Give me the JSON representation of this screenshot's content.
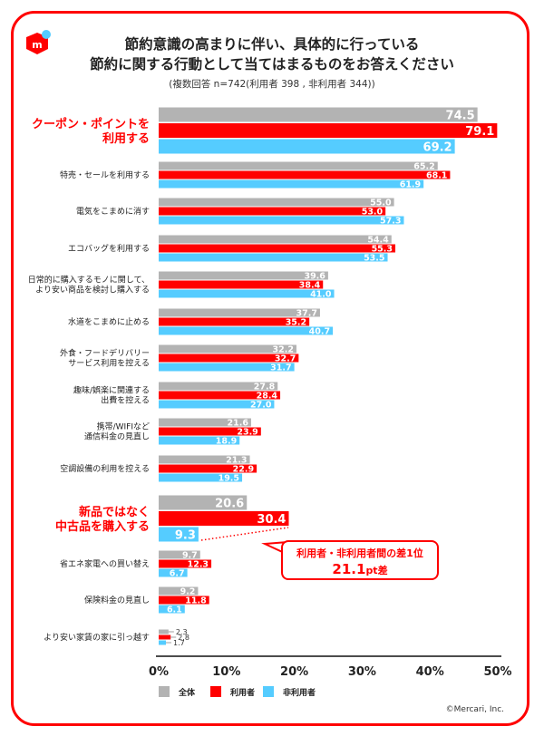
{
  "title_lines": [
    "節約意識の高まりに伴い、具体的に行っている",
    "節約に関する行動として当てはまるものをお答えください"
  ],
  "subtitle": "(複数回答 n=742(利用者 398 , 非利用者 344))",
  "callout": {
    "line1": "利用者・非利用者間の差1位",
    "value": "21.1",
    "unit": "pt差"
  },
  "copyright": "©Mercari, Inc.",
  "colors": {
    "all": "#b3b3b3",
    "user": "#ff0000",
    "nonuser": "#55ccff",
    "accent": "#ff0000"
  },
  "chart_data": {
    "type": "bar",
    "orientation": "horizontal",
    "categories": [
      [
        "クーポン・ポイントを",
        "利用する"
      ],
      [
        "特売・セールを利用する"
      ],
      [
        "電気をこまめに消す"
      ],
      [
        "エコバッグを利用する"
      ],
      [
        "日常的に購入するモノに関して、",
        "より安い商品を検討し購入する"
      ],
      [
        "水道をこまめに止める"
      ],
      [
        "外食・フードデリバリー",
        "サービス利用を控える"
      ],
      [
        "趣味/娯楽に関連する",
        "出費を控える"
      ],
      [
        "携帯/WIFIなど",
        "通信料金の見直し"
      ],
      [
        "空調設備の利用を控える"
      ],
      [
        "新品ではなく",
        "中古品を購入する"
      ],
      [
        "省エネ家電への買い替え"
      ],
      [
        "保険料金の見直し"
      ],
      [
        "より安い家賃の家に引っ越す"
      ]
    ],
    "highlighted": [
      0,
      10
    ],
    "series": [
      {
        "name": "全体",
        "values": [
          74.5,
          65.2,
          55.0,
          54.4,
          39.6,
          37.7,
          32.2,
          27.8,
          21.6,
          21.3,
          20.6,
          9.7,
          9.2,
          2.3
        ]
      },
      {
        "name": "利用者",
        "values": [
          79.1,
          68.1,
          53.0,
          55.3,
          38.4,
          35.2,
          32.7,
          28.4,
          23.9,
          22.9,
          30.4,
          12.3,
          11.8,
          2.8
        ]
      },
      {
        "name": "非利用者",
        "values": [
          69.2,
          61.9,
          57.3,
          53.5,
          41.0,
          40.7,
          31.7,
          27.0,
          18.9,
          19.5,
          9.3,
          6.7,
          6.1,
          1.7
        ]
      }
    ],
    "xtick_labels": [
      "0%",
      "10%",
      "20%",
      "30%",
      "40%",
      "50%"
    ],
    "legend": "bottom-left",
    "grid": false
  }
}
